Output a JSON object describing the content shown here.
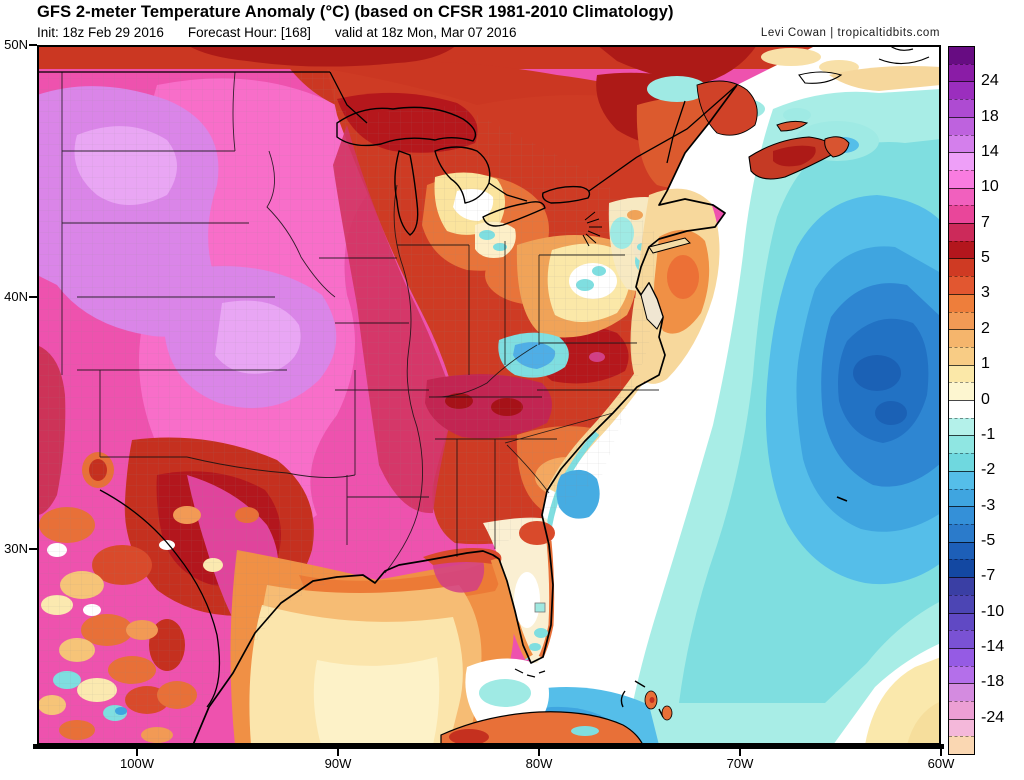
{
  "header": {
    "title": "GFS 2-meter Temperature Anomaly (°C) (based on CFSR 1981-2010 Climatology)",
    "init": "Init: 18z Feb 29 2016",
    "forecast_hour": "Forecast Hour: [168]",
    "valid": "valid at 18z Mon, Mar 07 2016",
    "credit": "Levi Cowan | tropicaltidbits.com"
  },
  "map": {
    "lat_ticks": [
      "50N",
      "40N",
      "30N"
    ],
    "lon_ticks": [
      "100W",
      "90W",
      "80W",
      "70W",
      "60W"
    ]
  },
  "colorbar": {
    "labels": [
      "24",
      "18",
      "14",
      "10",
      "7",
      "5",
      "3",
      "2",
      "1",
      "0",
      "-1",
      "-2",
      "-3",
      "-5",
      "-7",
      "-10",
      "-14",
      "-18",
      "-24"
    ],
    "segment_colors": [
      "#670C82",
      "#8A1CA6",
      "#9B2EBE",
      "#AE4BD2",
      "#BE62DE",
      "#D47FEC",
      "#EE9FF8",
      "#F97CE0",
      "#F160BE",
      "#E9469A",
      "#CC2A5A",
      "#B3161D",
      "#CF3A23",
      "#E25730",
      "#EE7E3B",
      "#F29A55",
      "#F5B56C",
      "#F8CC85",
      "#FBE8A8",
      "#FDF6D0",
      "#FFFFFF",
      "#B4F1EA",
      "#8FE6E2",
      "#6FD8DF",
      "#55BEE9",
      "#3FA5E0",
      "#3490D8",
      "#2B7BCB",
      "#1D5FB8",
      "#1348A2",
      "#3A3FA4",
      "#4C45B4",
      "#6049C4",
      "#7A52D4",
      "#955BE4",
      "#B46FEA",
      "#D48BE0",
      "#EC9FD4",
      "#F4B8DA",
      "#FAD7B2"
    ]
  }
}
